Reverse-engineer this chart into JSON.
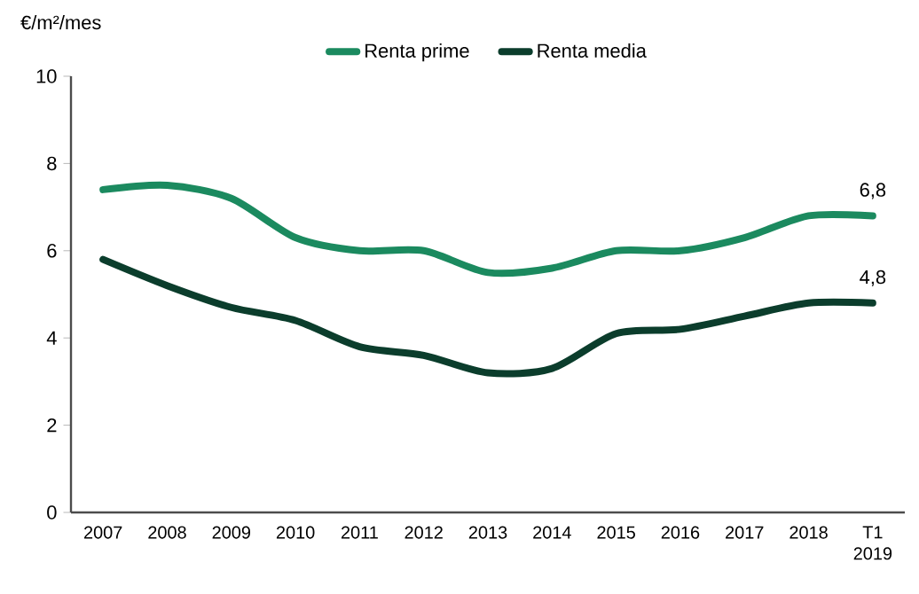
{
  "chart_data": {
    "type": "line",
    "ylabel": "€/m²/mes",
    "categories": [
      "2007",
      "2008",
      "2009",
      "2010",
      "2011",
      "2012",
      "2013",
      "2014",
      "2015",
      "2016",
      "2017",
      "2018",
      "T1 2019"
    ],
    "series": [
      {
        "name": "Renta prime",
        "color": "#1b8a5f",
        "values": [
          7.4,
          7.5,
          7.2,
          6.3,
          6.0,
          6.0,
          5.5,
          5.6,
          6.0,
          6.0,
          6.3,
          6.8,
          6.8
        ],
        "value_labels": [
          null,
          null,
          null,
          null,
          null,
          null,
          null,
          null,
          null,
          null,
          null,
          null,
          "6,8"
        ]
      },
      {
        "name": "Renta media",
        "color": "#0b3d2c",
        "values": [
          5.8,
          5.2,
          4.7,
          4.4,
          3.8,
          3.6,
          3.2,
          3.3,
          4.1,
          4.2,
          4.5,
          4.8,
          4.8
        ],
        "value_labels": [
          null,
          null,
          null,
          null,
          null,
          null,
          null,
          null,
          null,
          null,
          null,
          null,
          "4,8"
        ]
      }
    ],
    "ylim": [
      0,
      10
    ],
    "yticks": [
      0,
      2,
      4,
      6,
      8,
      10
    ],
    "legend": "top",
    "marker": "none",
    "line_style": "solid"
  }
}
